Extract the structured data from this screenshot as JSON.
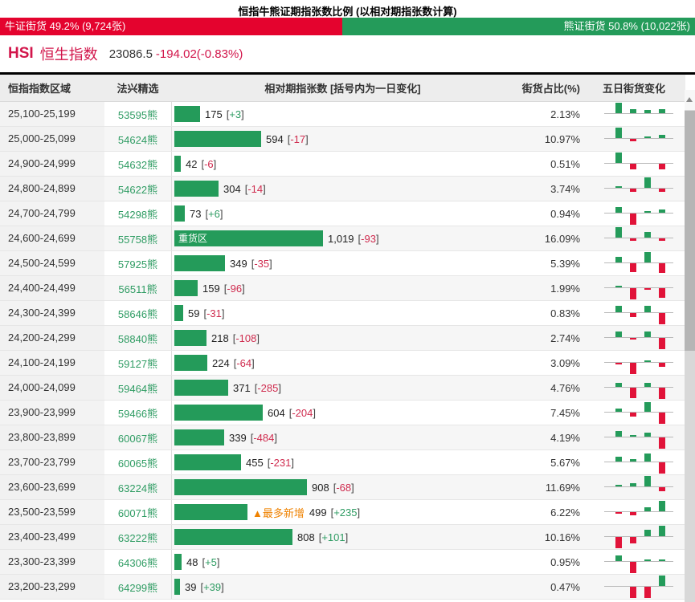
{
  "title": "恒指牛熊证期指张数比例 (以相对期指张数计算)",
  "gauge": {
    "bull_label": "牛证街货 49.2% (9,724张)",
    "bull_pct": 49.2,
    "bear_label": "熊证街货 50.8% (10,022张)",
    "bear_pct": 50.8,
    "bull_color": "#e4032e",
    "bear_color": "#249b5a"
  },
  "index": {
    "symbol": "HSI",
    "name": "恒生指数",
    "price": "23086.5",
    "change": "-194.02(-0.83%)"
  },
  "table": {
    "headers": [
      "恒指指数区域",
      "法兴精选",
      "相对期指张数 [括号内为一日变化]",
      "街货占比(%)",
      "五日街货变化"
    ],
    "max_value": 1019,
    "rows": [
      {
        "range": "25,100-25,199",
        "code": "53595",
        "suffix": "熊",
        "value": "175",
        "value_num": 175,
        "change": "+3",
        "pct": "2.13%",
        "mini": [
          1,
          0.35,
          0.3,
          0.35
        ]
      },
      {
        "range": "25,000-25,099",
        "code": "54624",
        "suffix": "熊",
        "value": "594",
        "value_num": 594,
        "change": "-17",
        "pct": "10.97%",
        "mini": [
          1,
          -0.18,
          0.15,
          0.3
        ]
      },
      {
        "range": "24,900-24,999",
        "code": "54632",
        "suffix": "熊",
        "value": "42",
        "value_num": 42,
        "change": "-6",
        "pct": "0.51%",
        "mini": [
          1,
          -0.5,
          0,
          -0.5
        ]
      },
      {
        "range": "24,800-24,899",
        "code": "54622",
        "suffix": "熊",
        "value": "304",
        "value_num": 304,
        "change": "-14",
        "pct": "3.74%",
        "mini": [
          0.12,
          -0.3,
          1,
          -0.3
        ]
      },
      {
        "range": "24,700-24,799",
        "code": "54298",
        "suffix": "熊",
        "value": "73",
        "value_num": 73,
        "change": "+6",
        "pct": "0.94%",
        "mini": [
          0.55,
          -1,
          0.18,
          0.28
        ]
      },
      {
        "range": "24,600-24,699",
        "code": "55758",
        "suffix": "熊",
        "value": "1,019",
        "value_num": 1019,
        "change": "-93",
        "pct": "16.09%",
        "tag_in": "重货区",
        "mini": [
          1,
          -0.22,
          0.55,
          -0.22
        ]
      },
      {
        "range": "24,500-24,599",
        "code": "57925",
        "suffix": "熊",
        "value": "349",
        "value_num": 349,
        "change": "-35",
        "pct": "5.39%",
        "mini": [
          0.55,
          -0.8,
          1,
          -0.85
        ]
      },
      {
        "range": "24,400-24,499",
        "code": "56511",
        "suffix": "熊",
        "value": "159",
        "value_num": 159,
        "change": "-96",
        "pct": "1.99%",
        "mini": [
          0.15,
          -1,
          -0.12,
          -0.85
        ]
      },
      {
        "range": "24,300-24,399",
        "code": "58646",
        "suffix": "熊",
        "value": "59",
        "value_num": 59,
        "change": "-31",
        "pct": "0.83%",
        "mini": [
          0.6,
          -0.35,
          0.6,
          -1
        ]
      },
      {
        "range": "24,200-24,299",
        "code": "58840",
        "suffix": "熊",
        "value": "218",
        "value_num": 218,
        "change": "-108",
        "pct": "2.74%",
        "mini": [
          0.55,
          -0.15,
          0.55,
          -1
        ]
      },
      {
        "range": "24,100-24,199",
        "code": "59127",
        "suffix": "熊",
        "value": "224",
        "value_num": 224,
        "change": "-64",
        "pct": "3.09%",
        "mini": [
          -0.12,
          -1,
          0.18,
          -0.35
        ]
      },
      {
        "range": "24,000-24,099",
        "code": "59464",
        "suffix": "熊",
        "value": "371",
        "value_num": 371,
        "change": "-285",
        "pct": "4.76%",
        "mini": [
          0.35,
          -0.9,
          0.35,
          -1
        ]
      },
      {
        "range": "23,900-23,999",
        "code": "59466",
        "suffix": "熊",
        "value": "604",
        "value_num": 604,
        "change": "-204",
        "pct": "7.45%",
        "mini": [
          0.3,
          -0.35,
          0.9,
          -1
        ]
      },
      {
        "range": "23,800-23,899",
        "code": "60067",
        "suffix": "熊",
        "value": "339",
        "value_num": 339,
        "change": "-484",
        "pct": "4.19%",
        "mini": [
          0.5,
          0.12,
          0.35,
          -1
        ]
      },
      {
        "range": "23,700-23,799",
        "code": "60065",
        "suffix": "熊",
        "value": "455",
        "value_num": 455,
        "change": "-231",
        "pct": "5.67%",
        "mini": [
          0.45,
          0.2,
          0.75,
          -1
        ]
      },
      {
        "range": "23,600-23,699",
        "code": "63224",
        "suffix": "熊",
        "value": "908",
        "value_num": 908,
        "change": "-68",
        "pct": "11.69%",
        "mini": [
          0.18,
          0.3,
          1,
          -0.35
        ]
      },
      {
        "range": "23,500-23,599",
        "code": "60071",
        "suffix": "熊",
        "value": "499",
        "value_num": 499,
        "change": "+235",
        "pct": "6.22%",
        "tag_after": "▲最多新增",
        "mini": [
          -0.12,
          -0.3,
          0.35,
          1
        ]
      },
      {
        "range": "23,400-23,499",
        "code": "63222",
        "suffix": "熊",
        "value": "808",
        "value_num": 808,
        "change": "+101",
        "pct": "10.16%",
        "mini": [
          -1,
          -0.6,
          0.6,
          1
        ]
      },
      {
        "range": "23,300-23,399",
        "code": "64306",
        "suffix": "熊",
        "value": "48",
        "value_num": 48,
        "change": "+5",
        "pct": "0.95%",
        "mini": [
          0.5,
          -1,
          0.18,
          0.18
        ]
      },
      {
        "range": "23,200-23,299",
        "code": "64299",
        "suffix": "熊",
        "value": "39",
        "value_num": 39,
        "change": "+39",
        "pct": "0.47%",
        "mini": [
          0,
          -1,
          -1,
          1
        ]
      }
    ]
  },
  "chart_data": {
    "type": "bar",
    "title": "相对期指张数 [括号内为一日变化]",
    "categories": [
      "25,100-25,199",
      "25,000-25,099",
      "24,900-24,999",
      "24,800-24,899",
      "24,700-24,799",
      "24,600-24,699",
      "24,500-24,599",
      "24,400-24,499",
      "24,300-24,399",
      "24,200-24,299",
      "24,100-24,199",
      "24,000-24,099",
      "23,900-23,999",
      "23,800-23,899",
      "23,700-23,799",
      "23,600-23,699",
      "23,500-23,599",
      "23,400-23,499",
      "23,300-23,399",
      "23,200-23,299"
    ],
    "series": [
      {
        "name": "相对期指张数",
        "values": [
          175,
          594,
          42,
          304,
          73,
          1019,
          349,
          159,
          59,
          218,
          224,
          371,
          604,
          339,
          455,
          908,
          499,
          808,
          48,
          39
        ]
      },
      {
        "name": "一日变化",
        "values": [
          3,
          -17,
          -6,
          -14,
          6,
          -93,
          -35,
          -96,
          -31,
          -108,
          -64,
          -285,
          -204,
          -484,
          -231,
          -68,
          235,
          101,
          5,
          39
        ]
      },
      {
        "name": "街货占比(%)",
        "values": [
          2.13,
          10.97,
          0.51,
          3.74,
          0.94,
          16.09,
          5.39,
          1.99,
          0.83,
          2.74,
          3.09,
          4.76,
          7.45,
          4.19,
          5.67,
          11.69,
          6.22,
          10.16,
          0.95,
          0.47
        ]
      }
    ],
    "xlim": [
      0,
      1019
    ],
    "annotations": [
      "重货区 @ 24,600-24,699",
      "▲最多新增 @ 23,500-23,599"
    ]
  }
}
